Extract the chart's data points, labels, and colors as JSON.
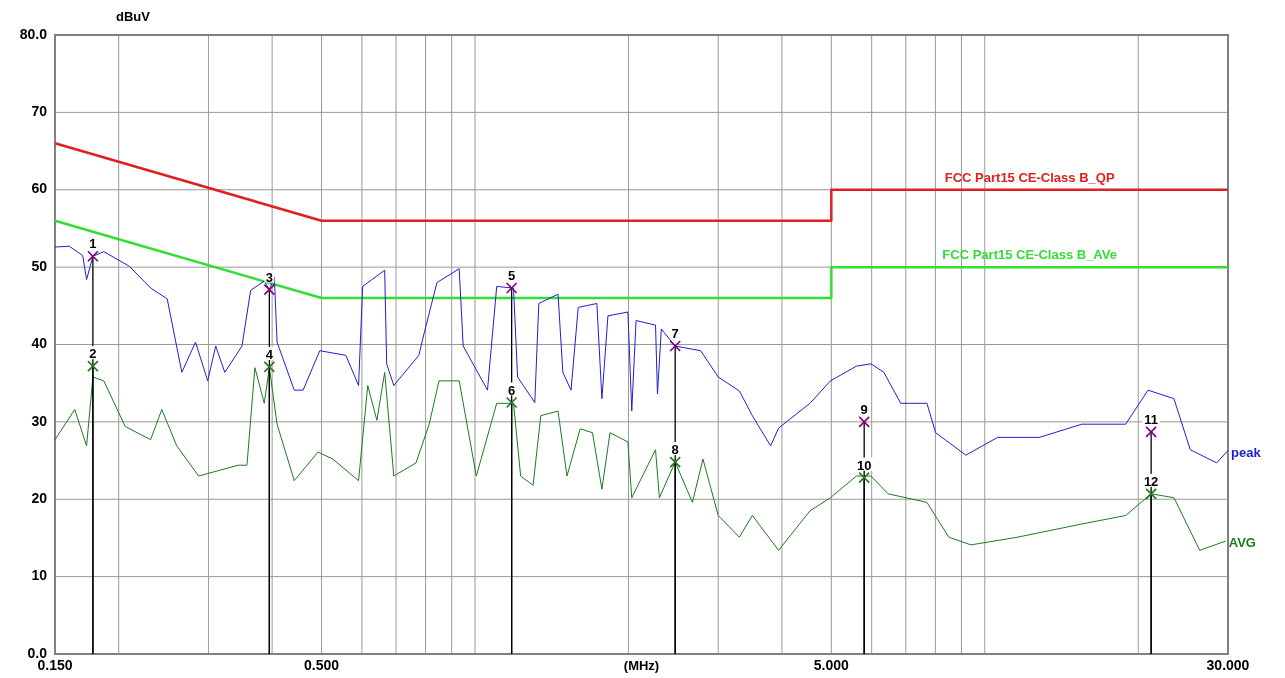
{
  "chart_data": {
    "type": "line",
    "xlabel": "(MHz)",
    "ylabel": "dBuV",
    "log": "x",
    "grid": true,
    "xlim": [
      0.15,
      30
    ],
    "ylim": [
      0,
      80
    ],
    "xticks": [
      {
        "value": 0.15,
        "label": "0.150"
      },
      {
        "value": 0.2,
        "label": null
      },
      {
        "value": 0.3,
        "label": null
      },
      {
        "value": 0.4,
        "label": null
      },
      {
        "value": 0.5,
        "label": "0.500"
      },
      {
        "value": 0.6,
        "label": null
      },
      {
        "value": 0.7,
        "label": null
      },
      {
        "value": 0.8,
        "label": null
      },
      {
        "value": 0.9,
        "label": null
      },
      {
        "value": 1,
        "label": null
      },
      {
        "value": 2,
        "label": null
      },
      {
        "value": 3,
        "label": null
      },
      {
        "value": 4,
        "label": null
      },
      {
        "value": 5,
        "label": "5.000"
      },
      {
        "value": 6,
        "label": null
      },
      {
        "value": 7,
        "label": null
      },
      {
        "value": 8,
        "label": null
      },
      {
        "value": 9,
        "label": null
      },
      {
        "value": 10,
        "label": null
      },
      {
        "value": 20,
        "label": null
      },
      {
        "value": 30,
        "label": "30.000"
      }
    ],
    "yticks": [
      {
        "value": 0,
        "label": "0.0"
      },
      10,
      20,
      30,
      40,
      50,
      60,
      70,
      {
        "value": 80,
        "label": "80.0"
      }
    ],
    "series": [
      {
        "name": "FCC Part15 CE-Class B_QP",
        "color": "#e02020",
        "x": [
          0.15,
          0.5,
          5,
          5,
          30
        ],
        "values": [
          66,
          56,
          56,
          60,
          60
        ]
      },
      {
        "name": "FCC Part15 CE-Class B_AVe",
        "color": "#33dd33",
        "x": [
          0.15,
          0.5,
          5,
          5,
          30
        ],
        "values": [
          56,
          46,
          46,
          50,
          50
        ]
      },
      {
        "name": "peak",
        "color": "#2020d0",
        "x": [
          0.15,
          0.16,
          0.17,
          0.173,
          0.178,
          0.187,
          0.21,
          0.231,
          0.249,
          0.266,
          0.283,
          0.299,
          0.31,
          0.323,
          0.349,
          0.363,
          0.386,
          0.395,
          0.404,
          0.409,
          0.442,
          0.46,
          0.496,
          0.558,
          0.591,
          0.602,
          0.665,
          0.671,
          0.693,
          0.776,
          0.795,
          0.842,
          0.931,
          0.948,
          1.058,
          1.103,
          1.19,
          1.212,
          1.31,
          1.334,
          1.455,
          1.487,
          1.543,
          1.594,
          1.734,
          1.774,
          1.823,
          1.995,
          2.03,
          2.07,
          2.26,
          2.28,
          2.32,
          2.47,
          2.77,
          3,
          3.3,
          3.5,
          3.8,
          3.94,
          4.54,
          4.98,
          5.6,
          5.98,
          6.34,
          6.84,
          7.7,
          8.01,
          9.18,
          10.6,
          12.8,
          15.5,
          18.9,
          20.9,
          23.5,
          25.3,
          28.5,
          30
        ],
        "values": [
          52.6,
          52.7,
          51.5,
          48.4,
          51.4,
          52,
          50.1,
          47.3,
          45.9,
          36.4,
          40.3,
          35.3,
          39.8,
          36.4,
          39.8,
          47,
          48.2,
          47.1,
          48.7,
          40.3,
          34.1,
          34.1,
          39.2,
          38.6,
          34.7,
          47.5,
          49.6,
          37.5,
          34.7,
          38.6,
          41.5,
          48,
          49.8,
          39.8,
          34.1,
          47.5,
          47.3,
          35.8,
          32.5,
          45.3,
          46.5,
          36.4,
          34.1,
          44.8,
          45.3,
          33,
          43.7,
          44.2,
          31.4,
          43.1,
          42.5,
          33.6,
          42,
          39.8,
          39.2,
          35.8,
          34,
          30.8,
          26.9,
          29.2,
          32.4,
          35.3,
          37.2,
          37.5,
          36.4,
          32.4,
          32.4,
          28.6,
          25.7,
          28,
          28,
          29.7,
          29.7,
          34.1,
          33,
          26.4,
          24.7,
          26.3
        ]
      },
      {
        "name": "AVG",
        "color": "#1e7a1e",
        "x": [
          0.15,
          0.164,
          0.173,
          0.178,
          0.187,
          0.206,
          0.231,
          0.243,
          0.26,
          0.287,
          0.343,
          0.357,
          0.37,
          0.386,
          0.395,
          0.409,
          0.442,
          0.492,
          0.526,
          0.591,
          0.616,
          0.642,
          0.665,
          0.693,
          0.766,
          0.813,
          0.85,
          0.931,
          1.006,
          1.103,
          1.19,
          1.229,
          1.3,
          1.346,
          1.455,
          1.515,
          1.608,
          1.7,
          1.774,
          1.84,
          1.995,
          2.03,
          2.26,
          2.3,
          2.47,
          2.67,
          2.8,
          3,
          3.3,
          3.5,
          3.94,
          4.54,
          4.98,
          5.6,
          5.98,
          6.46,
          7.7,
          8.5,
          9.39,
          11.6,
          15.5,
          18.9,
          21.2,
          23.5,
          26.4,
          29.7
        ],
        "values": [
          27.7,
          31.6,
          26.9,
          35.8,
          35.3,
          29.4,
          27.7,
          31.6,
          26.9,
          23,
          24.4,
          24.4,
          37,
          32.4,
          37,
          29.7,
          22.4,
          26.1,
          25.2,
          22.4,
          34.7,
          30.2,
          36.4,
          23,
          24.7,
          29.7,
          35.3,
          35.3,
          23,
          32.4,
          32.4,
          23,
          21.8,
          30.8,
          31.4,
          23,
          29.1,
          28.6,
          21.3,
          28.6,
          27.4,
          20.2,
          26.4,
          20.2,
          24.8,
          19.6,
          25.2,
          17.9,
          15.1,
          17.9,
          13.4,
          18.5,
          20.2,
          23,
          23,
          20.7,
          19.6,
          15.1,
          14.1,
          15.1,
          16.8,
          17.9,
          20.7,
          20.2,
          13.4,
          14.6
        ]
      },
      {
        "type": "lollipop",
        "color": "#800080",
        "x": [
          0.178,
          0.395,
          1.18,
          2.47,
          5.8,
          21.2
        ],
        "values": [
          51.4,
          47.1,
          47.3,
          39.8,
          30,
          28.7
        ],
        "marker": "cross"
      },
      {
        "type": "lollipop",
        "color": "#1e7a1e",
        "x": [
          0.178,
          0.395,
          1.18,
          2.47,
          5.8,
          21.2
        ],
        "values": [
          37.2,
          37.1,
          32.5,
          24.8,
          22.8,
          20.7
        ],
        "marker": "cross"
      }
    ],
    "annotations": [
      {
        "text": "1",
        "x": 0.178,
        "y": 51.4
      },
      {
        "text": "2",
        "x": 0.178,
        "y": 37.2
      },
      {
        "text": "3",
        "x": 0.395,
        "y": 47.1
      },
      {
        "text": "4",
        "x": 0.395,
        "y": 37.1
      },
      {
        "text": "5",
        "x": 1.18,
        "y": 47.3
      },
      {
        "text": "6",
        "x": 1.18,
        "y": 32.5
      },
      {
        "text": "7",
        "x": 2.47,
        "y": 39.8
      },
      {
        "text": "8",
        "x": 2.47,
        "y": 24.8
      },
      {
        "text": "9",
        "x": 5.8,
        "y": 30
      },
      {
        "text": "10",
        "x": 5.8,
        "y": 22.8
      },
      {
        "text": "11",
        "x": 21.2,
        "y": 28.7
      },
      {
        "text": "12",
        "x": 21.2,
        "y": 20.7
      }
    ]
  }
}
